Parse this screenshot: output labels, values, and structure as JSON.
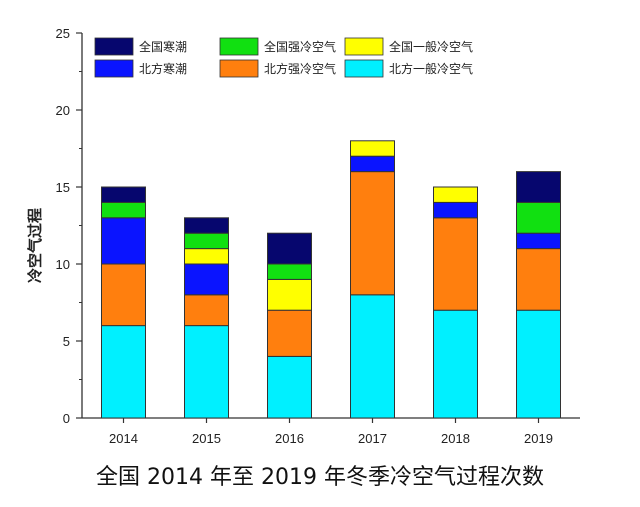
{
  "chart_data": {
    "type": "bar",
    "stacked": true,
    "title": "",
    "xlabel": "",
    "ylabel": "冷空气过程",
    "ylim": [
      0,
      25
    ],
    "yticks": [
      0,
      5,
      10,
      15,
      20,
      25
    ],
    "categories": [
      "2014",
      "2015",
      "2016",
      "2017",
      "2018",
      "2019"
    ],
    "series": [
      {
        "name": "北方一般冷空气",
        "color": "#00f0ff",
        "values": [
          6,
          6,
          4,
          8,
          7,
          7
        ]
      },
      {
        "name": "北方强冷空气",
        "color": "#ff7f0e",
        "values": [
          4,
          2,
          3,
          8,
          6,
          4
        ]
      },
      {
        "name": "北方寒潮",
        "color": "#0a14ff",
        "values": [
          3,
          2,
          0,
          1,
          1,
          1
        ]
      },
      {
        "name": "全国一般冷空气",
        "color": "#ffff00",
        "values": [
          0,
          1,
          2,
          1,
          1,
          0
        ]
      },
      {
        "name": "全国强冷空气",
        "color": "#11e011",
        "values": [
          1,
          1,
          1,
          0,
          0,
          2
        ]
      },
      {
        "name": "全国寒潮",
        "color": "#06066e",
        "values": [
          1,
          1,
          2,
          0,
          0,
          2
        ]
      }
    ],
    "legend_order": [
      "全国寒潮",
      "全国强冷空气",
      "全国一般冷空气",
      "北方寒潮",
      "北方强冷空气",
      "北方一般冷空气"
    ],
    "legend_position": "top-left",
    "grid": false
  },
  "caption": "全国 2014 年至 2019 年冬季冷空气过程次数"
}
